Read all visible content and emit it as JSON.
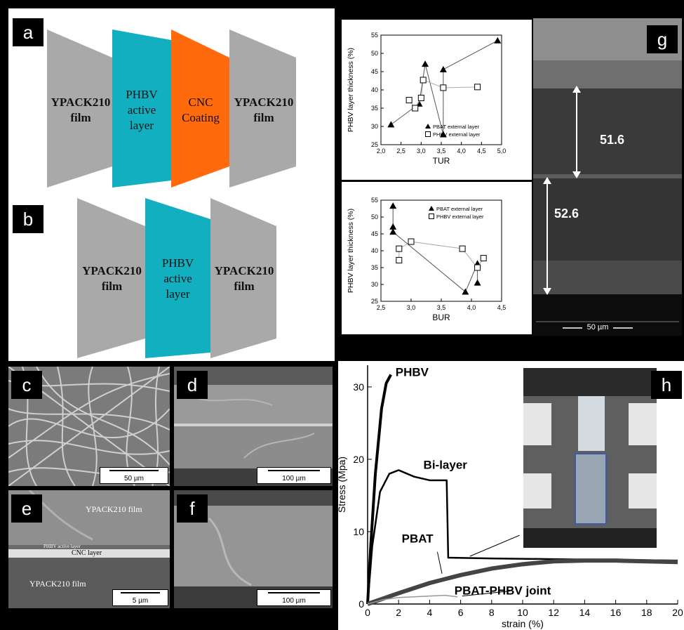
{
  "panels": {
    "a": {
      "label": "a",
      "layers": [
        "YPACK210\nfilm",
        "PHBV\nactive\nlayer",
        "CNC\nCoating",
        "YPACK210\nfilm"
      ],
      "colors": [
        "#a9a9a9",
        "#12afc0",
        "#ff6a0c",
        "#a9a9a9"
      ]
    },
    "b": {
      "label": "b",
      "layers": [
        "YPACK210\nfilm",
        "PHBV\nactive\nlayer",
        "YPACK210\nfilm"
      ],
      "colors": [
        "#a9a9a9",
        "#12afc0",
        "#a9a9a9"
      ]
    },
    "c": {
      "label": "c",
      "scale": "50 µm"
    },
    "d": {
      "label": "d",
      "scale": "100 µm"
    },
    "e": {
      "label": "e",
      "scale": "5 µm",
      "top_text": "YPACK210 film",
      "phbv_text": "PHBV active layer",
      "cnc_text": "CNC layer",
      "bottom_text": "YPACK210 film"
    },
    "f": {
      "label": "f",
      "scale": "100 µm"
    },
    "g": {
      "label": "g",
      "scale": "50 µm",
      "thick_top": "51.6",
      "thick_bottom": "52.6"
    },
    "h": {
      "label": "h"
    }
  },
  "chart_data": [
    {
      "type": "scatter",
      "xlabel": "TUR",
      "ylabel": "PHBV layer thickness (%)",
      "xlim": [
        2.0,
        5.0
      ],
      "ylim": [
        25,
        55
      ],
      "xticks": [
        "2,0",
        "2,5",
        "3,0",
        "3,5",
        "4,0",
        "4,5",
        "5,0"
      ],
      "yticks": [
        "25",
        "30",
        "35",
        "40",
        "45",
        "50",
        "55"
      ],
      "legend_position": "bottom-right",
      "series": [
        {
          "name": "PBAT external layer",
          "marker": "triangle",
          "points": [
            [
              2.25,
              30.5
            ],
            [
              2.95,
              36.2
            ],
            [
              3.1,
              47.1
            ],
            [
              3.55,
              27.8
            ],
            [
              3.55,
              45.6
            ],
            [
              4.9,
              53.5
            ]
          ]
        },
        {
          "name": "PHBV external layer",
          "marker": "square",
          "points": [
            [
              2.7,
              37.2
            ],
            [
              2.85,
              35.0
            ],
            [
              3.0,
              37.8
            ],
            [
              3.05,
              42.7
            ],
            [
              3.55,
              40.6
            ],
            [
              4.4,
              40.8
            ]
          ]
        }
      ]
    },
    {
      "type": "scatter",
      "xlabel": "BUR",
      "ylabel": "PHBV layer thickness (%)",
      "xlim": [
        2.5,
        4.5
      ],
      "ylim": [
        25,
        55
      ],
      "xticks": [
        "2,5",
        "3,0",
        "3,5",
        "4,0",
        "4,5"
      ],
      "yticks": [
        "25",
        "30",
        "35",
        "40",
        "45",
        "50",
        "55"
      ],
      "legend_position": "top-right",
      "series": [
        {
          "name": "PBAT external layer",
          "marker": "triangle",
          "points": [
            [
              2.7,
              53.3
            ],
            [
              2.7,
              47.1
            ],
            [
              2.7,
              45.6
            ],
            [
              3.9,
              27.8
            ],
            [
              4.1,
              36.2
            ],
            [
              4.1,
              30.5
            ]
          ]
        },
        {
          "name": "PHBV external layer",
          "marker": "square",
          "points": [
            [
              2.8,
              37.2
            ],
            [
              2.8,
              40.6
            ],
            [
              3.0,
              42.7
            ],
            [
              3.85,
              40.6
            ],
            [
              4.1,
              35.0
            ],
            [
              4.2,
              37.8
            ]
          ]
        }
      ]
    },
    {
      "type": "line",
      "xlabel": "strain (%)",
      "ylabel": "Stress (Mpa)",
      "xlim": [
        0,
        20
      ],
      "ylim": [
        0,
        33
      ],
      "xticks": [
        "0",
        "2",
        "4",
        "6",
        "8",
        "10",
        "12",
        "14",
        "16",
        "18",
        "20"
      ],
      "yticks": [
        "0",
        "10",
        "20",
        "30"
      ],
      "series": [
        {
          "name": "PHBV",
          "points": [
            [
              0,
              0
            ],
            [
              0.2,
              8
            ],
            [
              0.5,
              18
            ],
            [
              0.9,
              27
            ],
            [
              1.2,
              30.5
            ],
            [
              1.5,
              31.7
            ]
          ]
        },
        {
          "name": "Bi-layer",
          "points": [
            [
              0,
              0
            ],
            [
              0.3,
              8
            ],
            [
              0.8,
              15.5
            ],
            [
              1.4,
              18
            ],
            [
              2.0,
              18.5
            ],
            [
              3.0,
              17.6
            ],
            [
              4.0,
              17.1
            ],
            [
              5.1,
              17.1
            ],
            [
              5.2,
              6.4
            ],
            [
              8,
              6.3
            ],
            [
              12,
              6.2
            ],
            [
              16,
              6.1
            ],
            [
              20,
              6.0
            ]
          ]
        },
        {
          "name": "PBAT",
          "points": [
            [
              0,
              0
            ],
            [
              2,
              1.5
            ],
            [
              4,
              2.9
            ],
            [
              6,
              4.0
            ],
            [
              8,
              4.9
            ],
            [
              10,
              5.5
            ],
            [
              12,
              5.9
            ],
            [
              14,
              6.0
            ],
            [
              16,
              6.0
            ],
            [
              18,
              5.9
            ],
            [
              20,
              5.8
            ]
          ]
        },
        {
          "name": "PBAT-PHBV joint",
          "points": [
            [
              0,
              0
            ],
            [
              1,
              0.6
            ],
            [
              2,
              0.9
            ],
            [
              3,
              1.0
            ],
            [
              4,
              1.1
            ],
            [
              5,
              1.2
            ],
            [
              5.8,
              1.0
            ]
          ]
        }
      ]
    }
  ]
}
